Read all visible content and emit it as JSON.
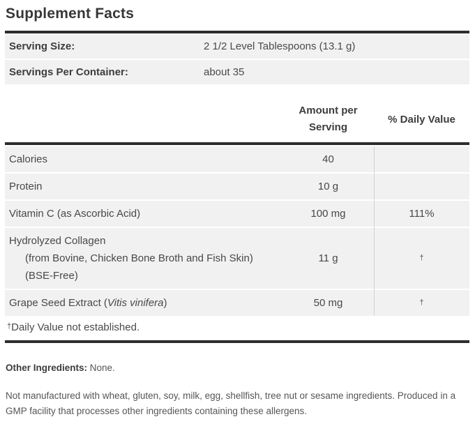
{
  "title": "Supplement Facts",
  "serving_info": {
    "rows": [
      {
        "label": "Serving Size:",
        "value": "2 1/2 Level Tablespoons (13.1 g)"
      },
      {
        "label": "Servings Per Container:",
        "value": "about 35"
      }
    ]
  },
  "columns": {
    "amount_header": "Amount per Serving",
    "daily_value_header": "% Daily Value"
  },
  "nutrients": [
    {
      "name": "Calories",
      "amount": "40",
      "dv": ""
    },
    {
      "name": "Protein",
      "amount": "10 g",
      "dv": ""
    },
    {
      "name": "Vitamin C (as Ascorbic Acid)",
      "amount": "100 mg",
      "dv": "111%"
    },
    {
      "name": "Hydrolyzed Collagen",
      "name_sub": "(from Bovine, Chicken Bone Broth and Fish Skin) (BSE-Free)",
      "amount": "11 g",
      "dv": "†"
    },
    {
      "name_prefix": "Grape Seed Extract (",
      "name_italic": "Vitis vinifera",
      "name_suffix": ")",
      "amount": "50 mg",
      "dv": "†"
    }
  ],
  "footnote": {
    "dagger": "†",
    "text": "Daily Value not established."
  },
  "other_ingredients": {
    "label": "Other Ingredients:",
    "value": " None."
  },
  "allergen_statement": "Not manufactured with wheat, gluten, soy, milk, egg, shellfish, tree nut or sesame ingredients. Produced in a GMP facility that processes other ingredients containing these allergens.",
  "colors": {
    "rule": "#2d2d2d",
    "row_background": "#f1f1f1",
    "column_divider": "#d2d2d2",
    "heading_text": "#373737",
    "body_text": "#4a4a4a",
    "muted_text": "#555555"
  }
}
